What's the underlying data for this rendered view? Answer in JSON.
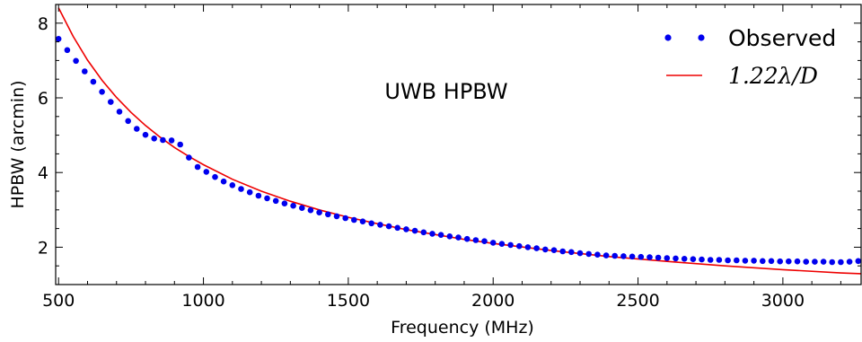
{
  "chart_data": {
    "type": "scatter",
    "annotation": "UWB HPBW",
    "xlabel": "Frequency (MHz)",
    "ylabel": "HPBW (arcmin)",
    "xlim": [
      490,
      3270
    ],
    "ylim": [
      1.0,
      8.5
    ],
    "x_ticks": [
      500,
      1000,
      1500,
      2000,
      2500,
      3000
    ],
    "y_ticks": [
      2,
      4,
      6,
      8
    ],
    "grid": false,
    "legend_position": "top-right",
    "colors": {
      "observed": "#0000ee",
      "model": "#ee0000"
    },
    "series": [
      {
        "name": "Observed",
        "kind": "points",
        "x": [
          500,
          530,
          560,
          590,
          620,
          650,
          680,
          710,
          740,
          770,
          800,
          830,
          860,
          890,
          920,
          950,
          980,
          1010,
          1040,
          1070,
          1100,
          1130,
          1160,
          1190,
          1220,
          1250,
          1280,
          1310,
          1340,
          1370,
          1400,
          1430,
          1460,
          1490,
          1520,
          1550,
          1580,
          1610,
          1640,
          1670,
          1700,
          1730,
          1760,
          1790,
          1820,
          1850,
          1880,
          1910,
          1940,
          1970,
          2000,
          2030,
          2060,
          2090,
          2120,
          2150,
          2180,
          2210,
          2240,
          2270,
          2300,
          2330,
          2360,
          2390,
          2420,
          2450,
          2480,
          2510,
          2540,
          2570,
          2600,
          2630,
          2660,
          2690,
          2720,
          2750,
          2780,
          2810,
          2840,
          2870,
          2900,
          2930,
          2960,
          2990,
          3020,
          3050,
          3080,
          3110,
          3140,
          3170,
          3200,
          3230,
          3260
        ],
        "y": [
          7.58,
          7.28,
          6.99,
          6.71,
          6.43,
          6.16,
          5.89,
          5.63,
          5.38,
          5.17,
          5.01,
          4.91,
          4.87,
          4.86,
          4.75,
          4.4,
          4.15,
          4.02,
          3.88,
          3.76,
          3.66,
          3.56,
          3.47,
          3.38,
          3.31,
          3.24,
          3.17,
          3.11,
          3.05,
          2.99,
          2.93,
          2.88,
          2.83,
          2.78,
          2.73,
          2.69,
          2.64,
          2.6,
          2.56,
          2.52,
          2.48,
          2.44,
          2.4,
          2.36,
          2.33,
          2.29,
          2.26,
          2.22,
          2.19,
          2.16,
          2.12,
          2.09,
          2.06,
          2.03,
          2.0,
          1.97,
          1.94,
          1.92,
          1.89,
          1.87,
          1.84,
          1.82,
          1.8,
          1.78,
          1.77,
          1.76,
          1.75,
          1.74,
          1.73,
          1.72,
          1.71,
          1.7,
          1.69,
          1.68,
          1.67,
          1.66,
          1.66,
          1.65,
          1.65,
          1.64,
          1.64,
          1.63,
          1.63,
          1.62,
          1.62,
          1.62,
          1.61,
          1.61,
          1.61,
          1.6,
          1.6,
          1.61,
          1.63
        ]
      },
      {
        "name": "1.22λ/D",
        "kind": "line",
        "x": [
          500,
          550,
          600,
          650,
          700,
          750,
          800,
          850,
          900,
          950,
          1000,
          1100,
          1200,
          1300,
          1400,
          1500,
          1600,
          1700,
          1800,
          1900,
          2000,
          2200,
          2400,
          2600,
          2800,
          3000,
          3200,
          3270
        ],
        "y": [
          8.41,
          7.65,
          7.01,
          6.47,
          6.01,
          5.61,
          5.26,
          4.95,
          4.67,
          4.43,
          4.21,
          3.82,
          3.5,
          3.23,
          3.0,
          2.8,
          2.63,
          2.47,
          2.34,
          2.21,
          2.1,
          1.91,
          1.75,
          1.62,
          1.5,
          1.4,
          1.31,
          1.29
        ]
      }
    ]
  }
}
